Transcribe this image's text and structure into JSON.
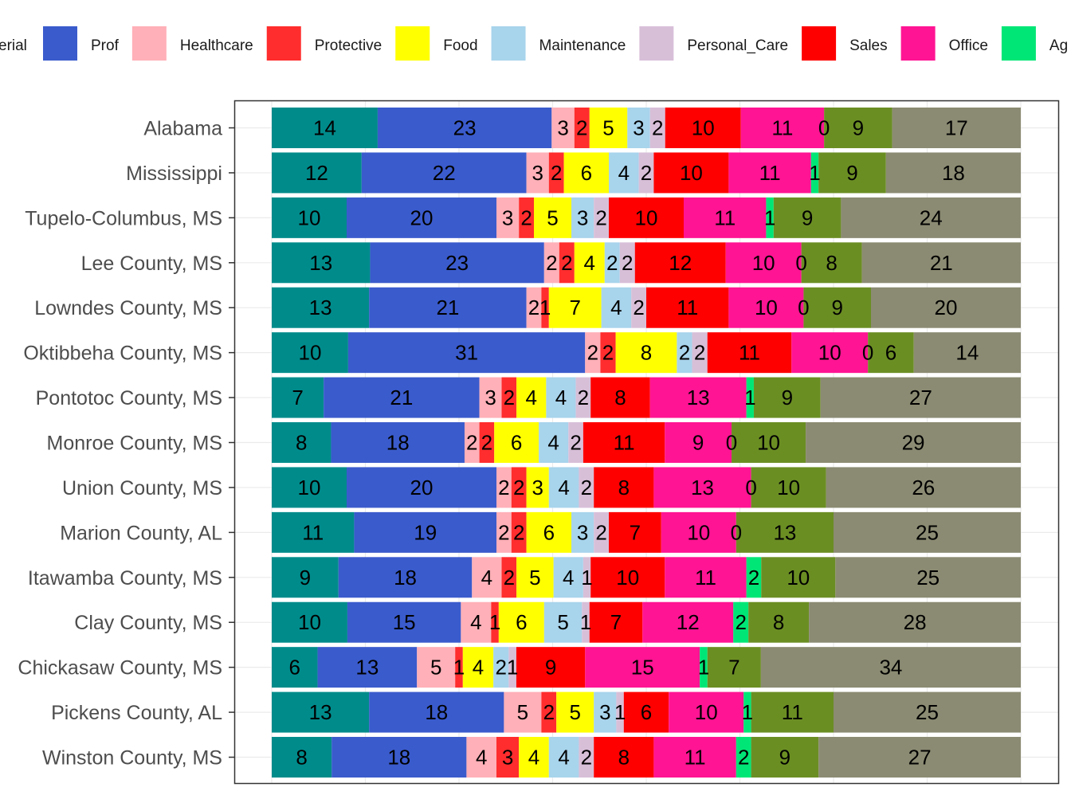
{
  "chart_data": {
    "type": "bar",
    "orientation": "horizontal",
    "stacked": true,
    "title": "",
    "xlabel": "",
    "ylabel": "",
    "legend_position": "top",
    "grid": true,
    "categories": [
      "Alabama",
      "Mississippi",
      "Tupelo-Columbus, MS",
      "Lee County, MS",
      "Lowndes County, MS",
      "Oktibbeha County, MS",
      "Pontotoc County, MS",
      "Monroe County, MS",
      "Union County, MS",
      "Marion County, AL",
      "Itawamba County, MS",
      "Clay County, MS",
      "Chickasaw County, MS",
      "Pickens County, AL",
      "Winston County, MS"
    ],
    "series": [
      {
        "name": "Managerial",
        "legend_visible_text": "erial",
        "color": "#008B8B",
        "values": [
          14,
          12,
          10,
          13,
          13,
          10,
          7,
          8,
          10,
          11,
          9,
          10,
          6,
          13,
          8
        ]
      },
      {
        "name": "Prof",
        "color": "#3A5BCC",
        "values": [
          23,
          22,
          20,
          23,
          21,
          31,
          21,
          18,
          20,
          19,
          18,
          15,
          13,
          18,
          18
        ]
      },
      {
        "name": "Healthcare",
        "color": "#FFB0B8",
        "values": [
          3,
          3,
          3,
          2,
          2,
          2,
          3,
          2,
          2,
          2,
          4,
          4,
          5,
          5,
          4
        ]
      },
      {
        "name": "Protective",
        "color": "#FF2D2D",
        "values": [
          2,
          2,
          2,
          2,
          1,
          2,
          2,
          2,
          2,
          2,
          2,
          1,
          1,
          2,
          3
        ]
      },
      {
        "name": "Food",
        "color": "#FFFF00",
        "values": [
          5,
          6,
          5,
          4,
          7,
          8,
          4,
          6,
          3,
          6,
          5,
          6,
          4,
          5,
          4
        ]
      },
      {
        "name": "Maintenance",
        "color": "#A8D4EC",
        "values": [
          3,
          4,
          3,
          2,
          4,
          2,
          4,
          4,
          4,
          3,
          4,
          5,
          2,
          3,
          4
        ]
      },
      {
        "name": "Personal_Care",
        "color": "#D8BFD8",
        "values": [
          2,
          2,
          2,
          2,
          2,
          2,
          2,
          2,
          2,
          2,
          1,
          1,
          1,
          1,
          2
        ]
      },
      {
        "name": "Sales",
        "color": "#FF0000",
        "values": [
          10,
          10,
          10,
          12,
          11,
          11,
          8,
          11,
          8,
          7,
          10,
          7,
          9,
          6,
          8
        ]
      },
      {
        "name": "Office",
        "color": "#FF1493",
        "values": [
          11,
          11,
          11,
          10,
          10,
          10,
          13,
          9,
          13,
          10,
          11,
          12,
          15,
          10,
          11
        ]
      },
      {
        "name": "Agriculture",
        "legend_visible_text": "Ag",
        "color": "#00E676",
        "values": [
          0,
          1,
          1,
          0,
          0,
          0,
          1,
          0,
          0,
          0,
          2,
          2,
          1,
          1,
          2
        ]
      },
      {
        "name": "",
        "color": "#6B8E23",
        "values": [
          9,
          9,
          9,
          8,
          9,
          6,
          9,
          10,
          10,
          13,
          10,
          8,
          7,
          11,
          9
        ]
      },
      {
        "name": "",
        "color": "#8B8B73",
        "values": [
          17,
          18,
          24,
          21,
          20,
          14,
          27,
          29,
          26,
          25,
          25,
          28,
          34,
          25,
          27
        ]
      }
    ]
  }
}
